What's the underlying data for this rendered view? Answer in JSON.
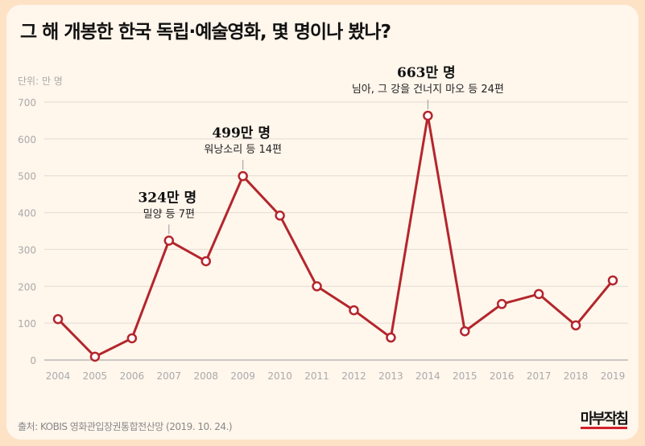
{
  "title": "그 해 개봉한 한국 독립·예술영화, 몇 명이나 봤나?",
  "unit_label": "단위: 만 명",
  "source": "출처: KOBIS 영화관입장권통합전산망 (2019. 10. 24.)",
  "logo": "마부작침",
  "colors": {
    "line": "#b3262c",
    "background": "#fff6ec",
    "frame": "#fde2c6"
  },
  "chart_data": {
    "type": "line",
    "x": [
      "2004",
      "2005",
      "2006",
      "2007",
      "2008",
      "2009",
      "2010",
      "2011",
      "2012",
      "2013",
      "2014",
      "2015",
      "2016",
      "2017",
      "2018",
      "2019"
    ],
    "values": [
      111,
      9,
      59,
      324,
      268,
      499,
      392,
      200,
      135,
      61,
      663,
      78,
      152,
      179,
      94,
      216
    ],
    "ylim": [
      0,
      700
    ],
    "yticks": [
      0,
      100,
      200,
      300,
      400,
      500,
      600,
      700
    ],
    "grid": true,
    "annotations": [
      {
        "x": "2007",
        "value": "324만 명",
        "note": "밀양 등 7편"
      },
      {
        "x": "2009",
        "value": "499만 명",
        "note": "워낭소리 등 14편"
      },
      {
        "x": "2014",
        "value": "663만 명",
        "note": "님아, 그 강을 건너지 마오 등 24편"
      }
    ]
  }
}
